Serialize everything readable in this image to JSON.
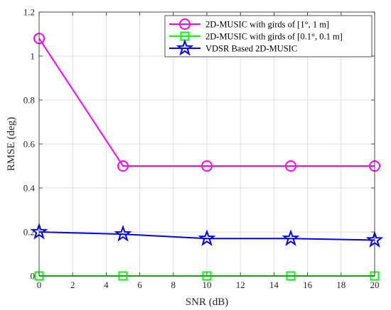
{
  "chart_data": {
    "type": "line",
    "xlabel": "SNR (dB)",
    "ylabel": "RMSE (deg)",
    "xlim": [
      0,
      20
    ],
    "ylim": [
      0,
      1.2
    ],
    "xticks": [
      "0",
      "2",
      "4",
      "6",
      "8",
      "10",
      "12",
      "14",
      "16",
      "18",
      "20"
    ],
    "yticks": [
      "0",
      "0.2",
      "0.4",
      "0.6",
      "0.8",
      "1",
      "1.2"
    ],
    "grid": true,
    "legend_position": "top-right",
    "series": [
      {
        "name": "2D-MUSIC with girds of [1°, 1 m]",
        "color": "#ff00ff",
        "marker": "circle",
        "x": [
          0,
          5,
          10,
          15,
          20
        ],
        "y": [
          1.08,
          0.5,
          0.5,
          0.5,
          0.5
        ]
      },
      {
        "name": "2D-MUSIC with girds of [0.1°, 0.1 m]",
        "color": "#00ff00",
        "marker": "square",
        "x": [
          0,
          5,
          10,
          15,
          20
        ],
        "y": [
          0,
          0,
          0,
          0,
          0
        ]
      },
      {
        "name": "VDSR Based 2D-MUSIC",
        "color": "#0000ff",
        "marker": "star",
        "x": [
          0,
          5,
          10,
          15,
          20
        ],
        "y": [
          0.2,
          0.19,
          0.17,
          0.17,
          0.163
        ]
      }
    ]
  }
}
